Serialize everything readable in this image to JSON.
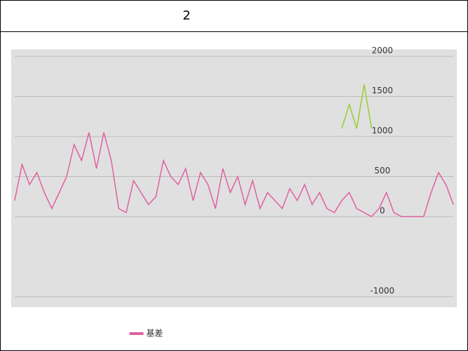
{
  "header": {
    "title": "2"
  },
  "chart_data": {
    "type": "line",
    "ylim": [
      -1000,
      2000
    ],
    "yticks": [
      2000,
      1500,
      1000,
      500,
      0,
      -1000
    ],
    "grid": true,
    "legend": "bottom",
    "series": [
      {
        "name": "基差",
        "color": "#e060a0",
        "values": [
          200,
          650,
          400,
          550,
          300,
          100,
          300,
          500,
          900,
          700,
          1050,
          600,
          1050,
          700,
          100,
          50,
          450,
          300,
          150,
          250,
          700,
          500,
          400,
          600,
          200,
          550,
          400,
          100,
          600,
          300,
          500,
          150,
          450,
          100,
          300,
          200,
          100,
          350,
          200,
          400,
          150,
          300,
          100,
          50,
          200,
          300,
          100,
          50,
          0,
          100,
          300,
          50,
          0,
          0,
          0,
          0,
          300,
          550,
          400,
          150
        ]
      },
      {
        "color": "#99cc33",
        "values": [
          null,
          null,
          null,
          null,
          null,
          null,
          null,
          null,
          null,
          null,
          null,
          null,
          null,
          null,
          null,
          null,
          null,
          null,
          null,
          null,
          null,
          null,
          null,
          null,
          null,
          null,
          null,
          null,
          null,
          null,
          null,
          null,
          null,
          null,
          null,
          null,
          null,
          null,
          null,
          null,
          null,
          null,
          null,
          null,
          1100,
          1400,
          1100,
          1650,
          1100,
          null,
          null,
          null,
          null,
          null,
          null,
          null,
          null,
          null,
          null,
          null
        ]
      }
    ]
  }
}
